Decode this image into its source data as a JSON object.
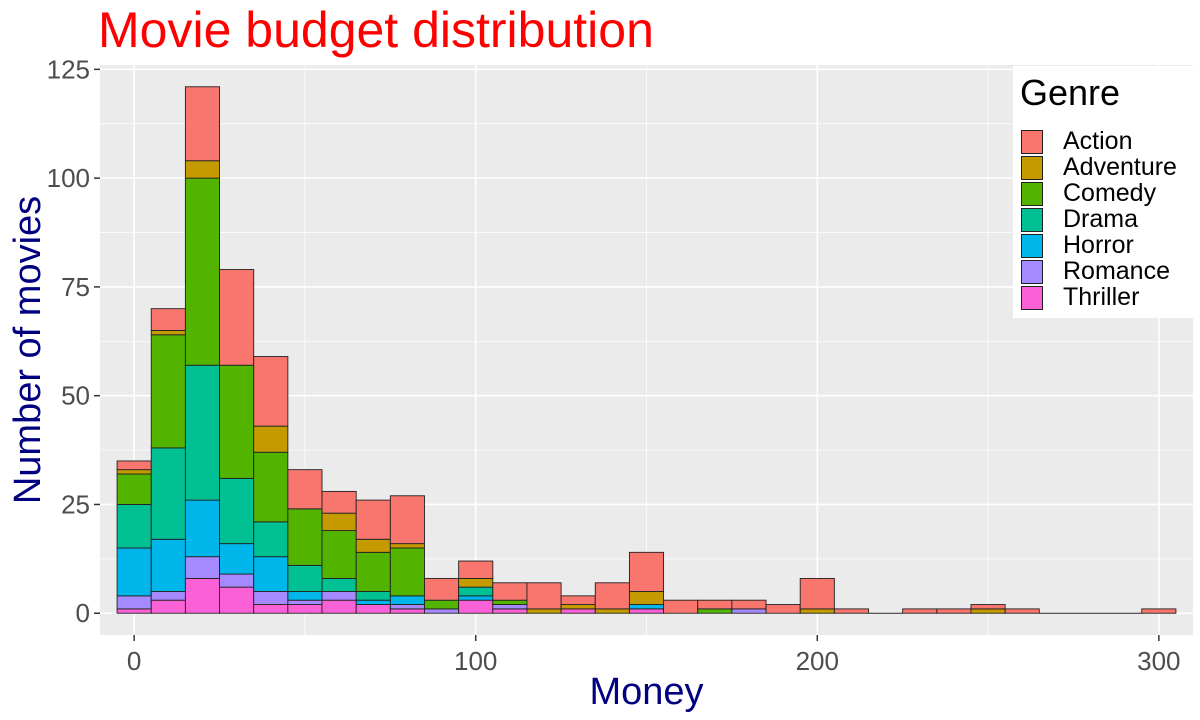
{
  "chart_data": {
    "type": "bar",
    "stacked": true,
    "title": "Movie budget distribution",
    "xlabel": "Money",
    "ylabel": "Number of movies",
    "xlim": [
      -10,
      310
    ],
    "ylim": [
      -5,
      126
    ],
    "xticks": [
      0,
      100,
      200,
      300
    ],
    "yticks": [
      0,
      25,
      50,
      75,
      100,
      125
    ],
    "bin_width": 10,
    "grid": true,
    "legend_title": "Genre",
    "legend_position": "top-right",
    "title_color": "#ff0000",
    "axis_label_color": "#000080",
    "series": [
      {
        "name": "Action",
        "color": "#F8766D"
      },
      {
        "name": "Adventure",
        "color": "#C49A00"
      },
      {
        "name": "Comedy",
        "color": "#53B400"
      },
      {
        "name": "Drama",
        "color": "#00C094"
      },
      {
        "name": "Horror",
        "color": "#00B6EB"
      },
      {
        "name": "Romance",
        "color": "#A58AFF"
      },
      {
        "name": "Thriller",
        "color": "#FB61D7"
      }
    ],
    "bins": [
      {
        "x": 0,
        "stack": [
          0,
          1,
          3,
          11,
          10,
          7,
          1,
          2
        ]
      },
      {
        "x": 10,
        "stack": [
          0,
          3,
          2,
          12,
          21,
          26,
          1,
          5
        ]
      },
      {
        "x": 20,
        "stack": [
          0,
          8,
          5,
          13,
          31,
          43,
          4,
          17
        ]
      },
      {
        "x": 30,
        "stack": [
          0,
          6,
          3,
          7,
          15,
          26,
          0,
          22
        ]
      },
      {
        "x": 40,
        "stack": [
          0,
          2,
          3,
          8,
          8,
          16,
          6,
          16
        ]
      },
      {
        "x": 50,
        "stack": [
          0,
          2,
          1,
          2,
          6,
          13,
          0,
          9
        ]
      },
      {
        "x": 60,
        "stack": [
          0,
          3,
          2,
          0,
          3,
          11,
          4,
          5
        ]
      },
      {
        "x": 70,
        "stack": [
          0,
          2,
          0,
          1,
          2,
          9,
          3,
          9
        ]
      },
      {
        "x": 80,
        "stack": [
          0,
          1,
          1,
          2,
          0,
          11,
          1,
          11
        ]
      },
      {
        "x": 90,
        "stack": [
          0,
          0,
          1,
          0,
          0,
          2,
          0,
          5
        ]
      },
      {
        "x": 100,
        "stack": [
          0,
          3,
          0,
          1,
          2,
          0,
          2,
          4
        ]
      },
      {
        "x": 110,
        "stack": [
          0,
          1,
          1,
          0,
          0,
          1,
          0,
          4
        ]
      },
      {
        "x": 120,
        "stack": [
          0,
          0,
          0,
          0,
          0,
          0,
          1,
          6
        ]
      },
      {
        "x": 130,
        "stack": [
          0,
          1,
          0,
          0,
          0,
          0,
          1,
          2
        ]
      },
      {
        "x": 140,
        "stack": [
          0,
          0,
          0,
          0,
          0,
          0,
          1,
          6
        ]
      },
      {
        "x": 150,
        "stack": [
          0,
          1,
          0,
          1,
          0,
          0,
          3,
          9
        ]
      },
      {
        "x": 160,
        "stack": [
          0,
          0,
          0,
          0,
          0,
          0,
          0,
          3
        ]
      },
      {
        "x": 170,
        "stack": [
          0,
          0,
          0,
          0,
          0,
          1,
          0,
          2
        ]
      },
      {
        "x": 180,
        "stack": [
          0,
          0,
          1,
          0,
          0,
          0,
          0,
          2
        ]
      },
      {
        "x": 190,
        "stack": [
          0,
          0,
          0,
          0,
          0,
          0,
          0,
          2
        ]
      },
      {
        "x": 200,
        "stack": [
          0,
          0,
          0,
          0,
          0,
          0,
          1,
          7
        ]
      },
      {
        "x": 210,
        "stack": [
          0,
          0,
          0,
          0,
          0,
          0,
          0,
          1
        ]
      },
      {
        "x": 220,
        "stack": [
          0,
          0,
          0,
          0,
          0,
          0,
          0,
          0
        ]
      },
      {
        "x": 230,
        "stack": [
          0,
          0,
          0,
          0,
          0,
          0,
          0,
          1
        ]
      },
      {
        "x": 240,
        "stack": [
          0,
          0,
          0,
          0,
          0,
          0,
          0,
          1
        ]
      },
      {
        "x": 250,
        "stack": [
          0,
          0,
          0,
          0,
          0,
          0,
          1,
          1
        ]
      },
      {
        "x": 260,
        "stack": [
          0,
          0,
          0,
          0,
          0,
          0,
          0,
          1
        ]
      },
      {
        "x": 270,
        "stack": [
          0,
          0,
          0,
          0,
          0,
          0,
          0,
          0
        ]
      },
      {
        "x": 280,
        "stack": [
          0,
          0,
          0,
          0,
          0,
          0,
          0,
          0
        ]
      },
      {
        "x": 290,
        "stack": [
          0,
          0,
          0,
          0,
          0,
          0,
          0,
          0
        ]
      },
      {
        "x": 300,
        "stack": [
          0,
          0,
          0,
          0,
          0,
          0,
          0,
          1
        ]
      }
    ],
    "stack_order": [
      "",
      "Thriller",
      "Romance",
      "Horror",
      "Drama",
      "Comedy",
      "Adventure",
      "Action"
    ]
  }
}
